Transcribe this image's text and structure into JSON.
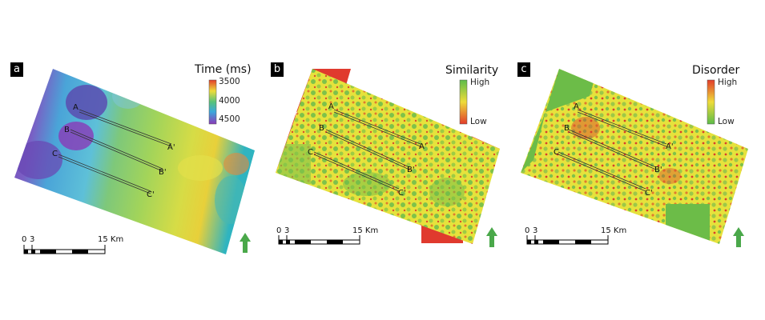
{
  "panels": [
    {
      "label": "a",
      "legend": {
        "title": "Time (ms)",
        "ticks": [
          "3500",
          "4000",
          "4500"
        ]
      },
      "profiles": [
        {
          "start": "A",
          "end": "A'"
        },
        {
          "start": "B",
          "end": "B'"
        },
        {
          "start": "C",
          "end": "C'"
        }
      ],
      "scale": {
        "labels": [
          "0",
          "3",
          "15 Km"
        ]
      }
    },
    {
      "label": "b",
      "legend": {
        "title": "Similarity",
        "ticks": [
          "High",
          "Low"
        ]
      },
      "profiles": [
        {
          "start": "A",
          "end": "A'"
        },
        {
          "start": "B",
          "end": "B'"
        },
        {
          "start": "C",
          "end": "C'"
        }
      ],
      "scale": {
        "labels": [
          "0",
          "3",
          "15 Km"
        ]
      }
    },
    {
      "label": "c",
      "legend": {
        "title": "Disorder",
        "ticks": [
          "High",
          "Low"
        ]
      },
      "profiles": [
        {
          "start": "A",
          "end": "A'"
        },
        {
          "start": "B",
          "end": "B'"
        },
        {
          "start": "C",
          "end": "C'"
        }
      ],
      "scale": {
        "labels": [
          "0",
          "3",
          "15 Km"
        ]
      }
    }
  ],
  "north_arrow_color": "#4aa84a"
}
